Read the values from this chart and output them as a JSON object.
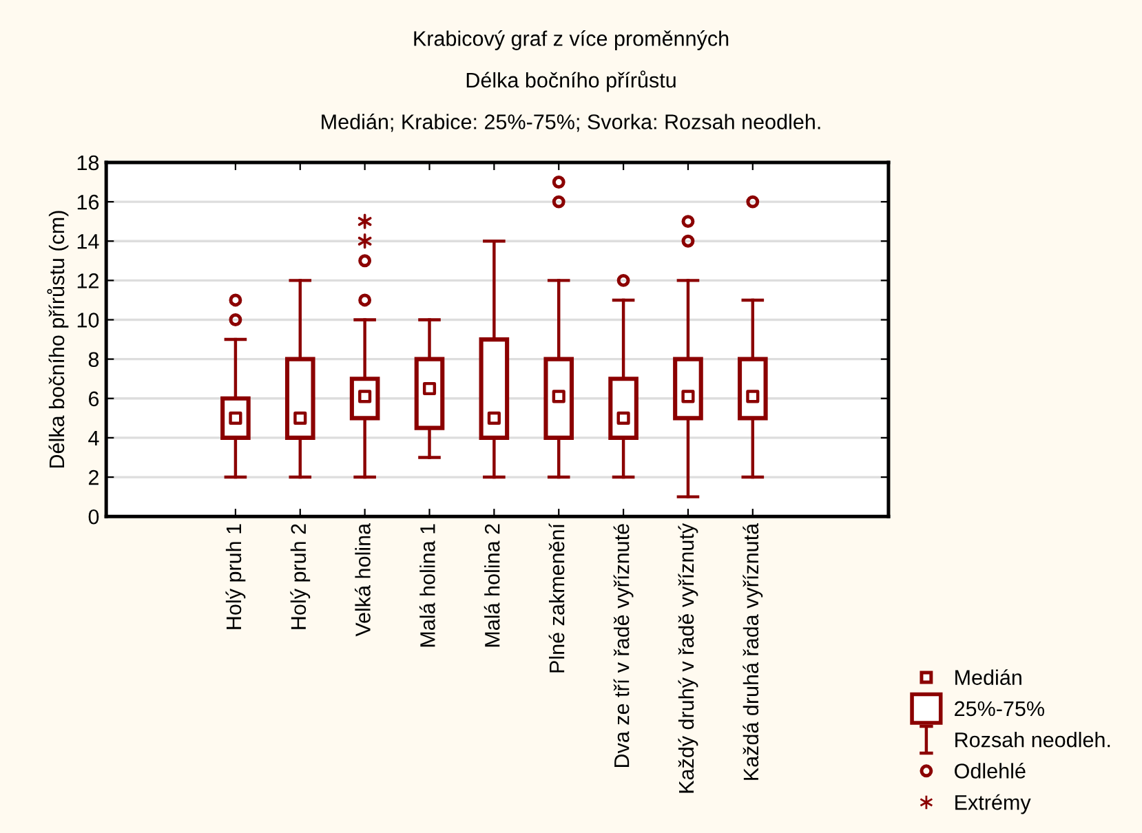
{
  "chart_data": {
    "type": "box",
    "title": "Krabicový graf z více proměnných",
    "subtitle": "Délka bočního přírůstu\nMedián; Krabice: 25%-75%; Svorka: Rozsah neodleh.",
    "ylabel": "Délka bočního přírůstu (cm)",
    "categories": [
      "Holý pruh 1",
      "Holý pruh 2",
      "Velká holina",
      "Malá holina 1",
      "Malá holina 2",
      "Plné zakmenění",
      "Dva ze tří v řadě vyříznuté",
      "Každý druhý v řadě vyříznutý",
      "Každá druhá řada vyříznutá"
    ],
    "ylim": [
      0,
      18
    ],
    "yticks": [
      0,
      2,
      4,
      6,
      8,
      10,
      12,
      14,
      16,
      18
    ],
    "grid": "y",
    "legend": "bottom right",
    "annotations": [
      "Medián",
      "25%-75%",
      "Rozsah neodleh.",
      "Odlehlé"
    ],
    "series": [
      {
        "color": "#8b0000",
        "boxes": [
          {
            "low": 2,
            "q1": 4,
            "median": 5,
            "q3": 6,
            "high": 9,
            "outliers": [
              10,
              11
            ]
          },
          {
            "low": 2,
            "q1": 4,
            "median": 5,
            "q3": 8,
            "high": 12
          },
          {
            "low": 2,
            "q1": 5,
            "median": 6.1,
            "q3": 7,
            "high": 10,
            "outliers": [
              11,
              13
            ]
          },
          {
            "low": 3,
            "q1": 4.5,
            "median": 6.5,
            "q3": 8,
            "high": 10
          },
          {
            "low": 2,
            "q1": 4,
            "median": 5,
            "q3": 9,
            "high": 14
          },
          {
            "low": 2,
            "q1": 4,
            "median": 6.1,
            "q3": 8,
            "high": 12,
            "outliers": [
              16,
              17
            ]
          },
          {
            "low": 2,
            "q1": 4,
            "median": 5,
            "q3": 7,
            "high": 11,
            "outliers": [
              12
            ]
          },
          {
            "low": 1,
            "q1": 5,
            "median": 6.1,
            "q3": 8,
            "high": 12,
            "outliers": [
              14,
              15
            ]
          },
          {
            "low": 2,
            "q1": 5,
            "median": 6.1,
            "q3": 8,
            "high": 11,
            "outliers": [
              16
            ]
          }
        ]
      },
      {
        "type": "scatter",
        "name": "Extrémy",
        "color": "#8b0000",
        "marker": "cross",
        "x": [
          "Velká holina",
          "Velká holina"
        ],
        "values": [
          14,
          15
        ]
      }
    ]
  }
}
